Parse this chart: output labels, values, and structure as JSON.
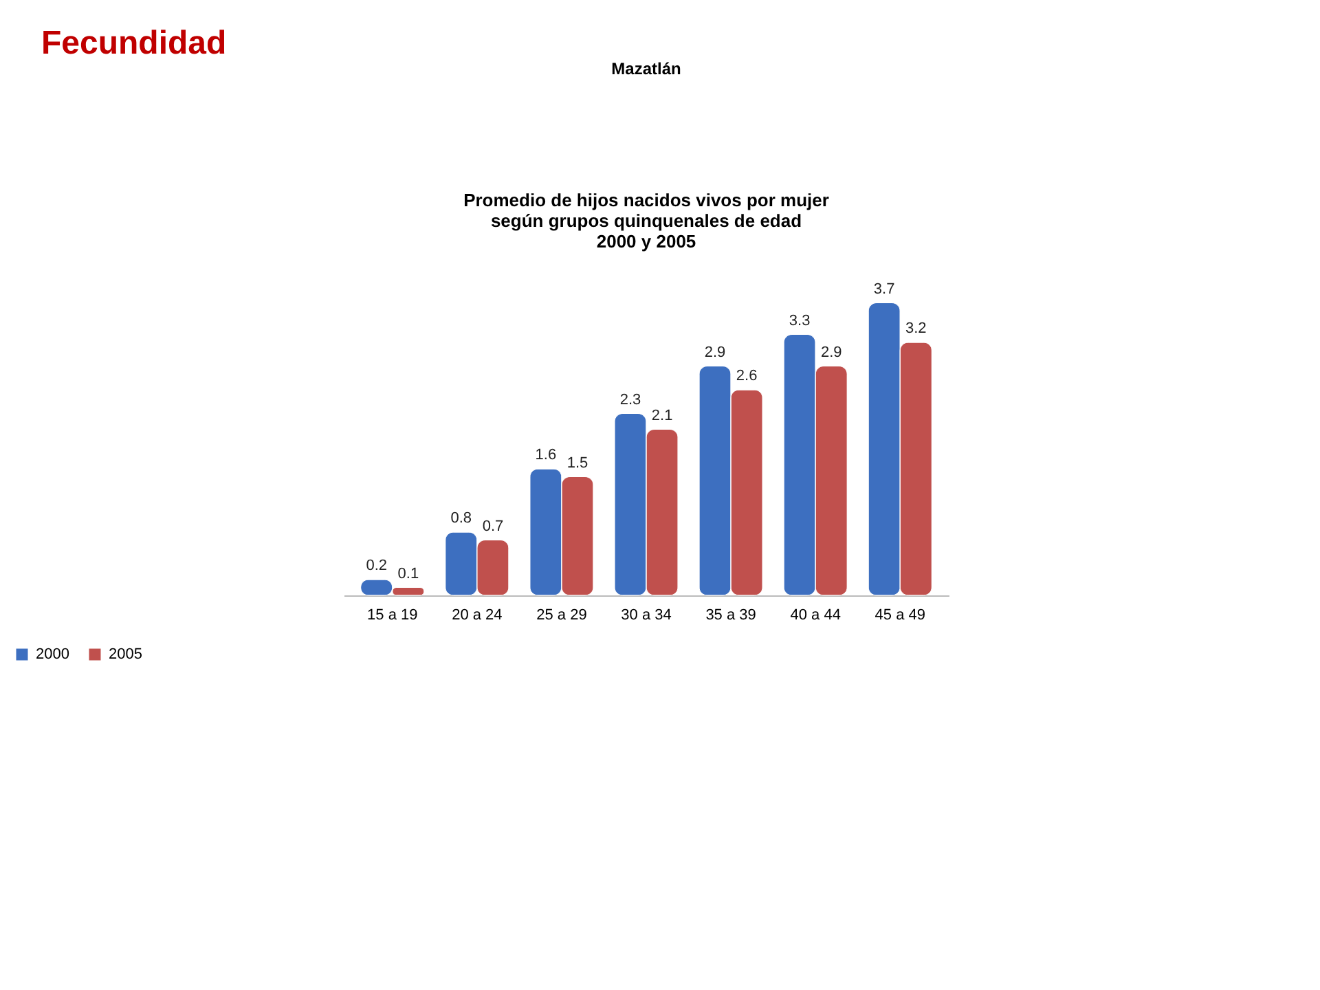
{
  "chart_data": {
    "type": "bar",
    "title": "Promedio de hijos nacidos vivos por mujer\nsegún grupos quinquenales de edad\n2000 y 2005",
    "annotations": [
      "Fecundidad",
      "Mazatlán"
    ],
    "categories": [
      "15 a 19",
      "20 a 24",
      "25 a 29",
      "30 a 34",
      "35 a 39",
      "40 a 44",
      "45 a 49"
    ],
    "series": [
      {
        "name": "2000",
        "color": "#3d6fc0",
        "values": [
          0.2,
          0.8,
          1.6,
          2.3,
          2.9,
          3.3,
          3.7
        ]
      },
      {
        "name": "2005",
        "color": "#c0504d",
        "values": [
          0.1,
          0.7,
          1.5,
          2.1,
          2.6,
          2.9,
          3.2
        ]
      }
    ],
    "data_labels": true,
    "legend": "bottom",
    "grid": false
  }
}
